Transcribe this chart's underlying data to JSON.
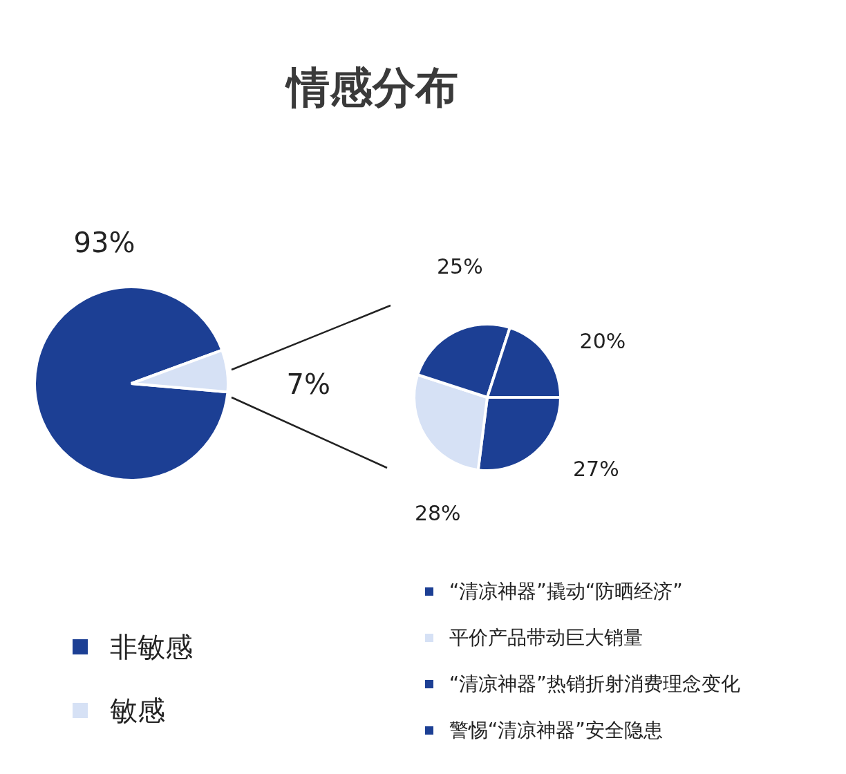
{
  "chart_data": [
    {
      "type": "pie",
      "title": "情感分布",
      "categories": [
        "非敏感",
        "敏感"
      ],
      "values": [
        93,
        7
      ],
      "colors": [
        "#1c3f94",
        "#d6e1f5"
      ],
      "value_labels": [
        "93%",
        "7%"
      ],
      "legend": "bottom left"
    },
    {
      "type": "pie",
      "categories": [
        "“清凉神器”撬动“防晒经济”",
        "平价产品带动巨大销量",
        "“清凉神器”热销折射消费理念变化",
        "警惕“清凉神器”安全隐患"
      ],
      "values": [
        27,
        28,
        25,
        20
      ],
      "colors": [
        "#1c3f94",
        "#d6e1f5",
        "#1c3f94",
        "#1c3f94"
      ],
      "value_labels": [
        "27%",
        "28%",
        "25%",
        "20%"
      ],
      "legend": "bottom right"
    }
  ]
}
